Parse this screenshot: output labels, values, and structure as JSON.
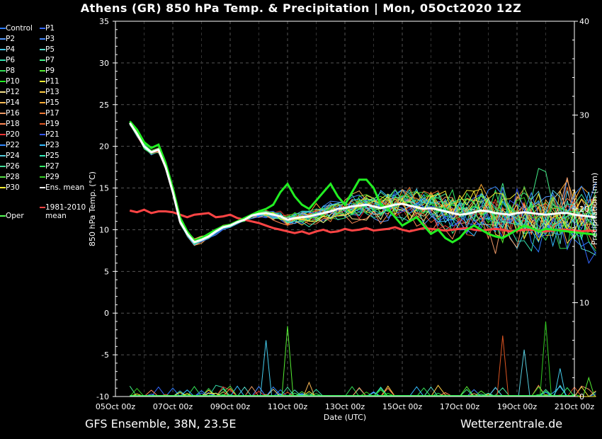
{
  "header": {
    "title": "Athens  (GR)  850 hPa Temp. & Precipitation | Mon, 05Oct2020 12Z"
  },
  "footer": {
    "left": "GFS Ensemble, 38N, 23.5E",
    "right": "Wetterzentrale.de"
  },
  "chart_data": {
    "type": "line",
    "title": "Athens  (GR)  850 hPa Temp. & Precipitation | Mon, 05Oct2020 12Z",
    "xlabel": "Date (UTC)",
    "ylabel": "850 hPa Temp. (°C)",
    "ylabel_right": "Precipitation (mm)",
    "x_ticks": [
      "05Oct 00z",
      "07Oct 00z",
      "09Oct 00z",
      "11Oct 00z",
      "13Oct 00z",
      "15Oct 00z",
      "17Oct 00z",
      "19Oct 00z",
      "21Oct 00z"
    ],
    "y_ticks": [
      "35",
      "30",
      "25",
      "20",
      "15",
      "10",
      "5",
      "0",
      "-5",
      "-10"
    ],
    "y2_ticks": [
      "40",
      "30",
      "20",
      "10",
      "0"
    ],
    "ylim": [
      -10,
      35
    ],
    "y2lim": [
      0,
      40
    ],
    "grid": true,
    "legend_position": "left",
    "time_hours": [
      12,
      18,
      24,
      30,
      36,
      42,
      48,
      54,
      60,
      66,
      72,
      78,
      84,
      90,
      96,
      102,
      108,
      114,
      120,
      126,
      132,
      138,
      144,
      150,
      156,
      162,
      168,
      174,
      180,
      186,
      192,
      198,
      204,
      210,
      216,
      222,
      228,
      234,
      240,
      246,
      252,
      258,
      264,
      270,
      276,
      282,
      288,
      294,
      300,
      306,
      312,
      318,
      324,
      330,
      336,
      342,
      348,
      354,
      360,
      366,
      372,
      378,
      384,
      390,
      396,
      402
    ],
    "ens_mean": [
      22.8,
      21.5,
      20.0,
      19.3,
      19.6,
      17.5,
      14.5,
      11.0,
      9.5,
      8.5,
      8.8,
      9.2,
      9.8,
      10.3,
      10.5,
      10.9,
      11.2,
      11.7,
      11.9,
      12.0,
      11.8,
      11.6,
      11.2,
      11.4,
      11.5,
      11.6,
      11.8,
      12.0,
      12.2,
      12.5,
      12.6,
      12.8,
      12.9,
      13.0,
      12.8,
      12.6,
      12.8,
      13.0,
      13.1,
      12.9,
      12.7,
      12.5,
      12.6,
      12.4,
      12.2,
      12.0,
      11.8,
      11.9,
      12.1,
      12.3,
      12.2,
      12.0,
      11.9,
      11.8,
      12.0,
      12.1,
      12.0,
      11.9,
      11.8,
      11.9,
      12.0,
      12.0,
      11.8,
      11.7,
      11.6,
      11.5
    ],
    "climate_mean": [
      12.3,
      12.1,
      12.4,
      12.0,
      12.2,
      12.2,
      12.1,
      11.8,
      11.5,
      11.8,
      11.9,
      12.0,
      11.5,
      11.6,
      11.8,
      11.4,
      11.2,
      11.0,
      10.8,
      10.5,
      10.2,
      10.0,
      9.8,
      9.6,
      9.8,
      9.5,
      9.8,
      10.0,
      9.7,
      9.8,
      10.1,
      9.9,
      10.0,
      10.2,
      9.9,
      10.0,
      10.1,
      10.3,
      10.0,
      9.8,
      10.0,
      10.2,
      10.1,
      10.0,
      9.9,
      10.0,
      10.1,
      10.2,
      10.0,
      9.9,
      10.0,
      10.1,
      10.0,
      9.8,
      9.9,
      10.0,
      10.0,
      9.9,
      9.8,
      9.9,
      10.0,
      10.0,
      9.9,
      9.8,
      9.9,
      9.8
    ],
    "oper": [
      23.0,
      22.0,
      20.5,
      19.8,
      20.2,
      18.0,
      15.0,
      11.5,
      9.8,
      8.7,
      9.0,
      9.5,
      10.0,
      10.4,
      10.6,
      11.0,
      11.4,
      11.8,
      12.2,
      12.5,
      13.0,
      14.5,
      15.5,
      14.0,
      13.0,
      12.5,
      13.5,
      14.5,
      15.5,
      14.0,
      13.0,
      14.5,
      16.0,
      16.0,
      15.0,
      13.0,
      12.5,
      11.5,
      10.5,
      11.0,
      11.5,
      10.5,
      9.5,
      10.0,
      9.0,
      8.5,
      9.0,
      10.0,
      10.5,
      10.0,
      9.5,
      9.2,
      9.0,
      9.5,
      10.0,
      10.5,
      10.2,
      9.8,
      10.1,
      10.0,
      9.9,
      9.8,
      9.7,
      9.6,
      9.5,
      9.4
    ],
    "precip_spikes_mm": [
      {
        "hour": 126,
        "value": 6.0
      },
      {
        "hour": 144,
        "value": 7.5
      },
      {
        "hour": 162,
        "value": 1.5
      },
      {
        "hour": 324,
        "value": 6.5
      },
      {
        "hour": 342,
        "value": 5.0
      },
      {
        "hour": 360,
        "value": 8.0
      },
      {
        "hour": 372,
        "value": 3.0
      },
      {
        "hour": 396,
        "value": 2.0
      }
    ],
    "legend": [
      {
        "label": "Control",
        "color": "#2b7bff"
      },
      {
        "label": "P1",
        "color": "#3366ff"
      },
      {
        "label": "P2",
        "color": "#5599ff"
      },
      {
        "label": "P3",
        "color": "#4488ff"
      },
      {
        "label": "P4",
        "color": "#44ccee"
      },
      {
        "label": "P5",
        "color": "#55ddcc"
      },
      {
        "label": "P6",
        "color": "#33ddaa"
      },
      {
        "label": "P7",
        "color": "#44ee88"
      },
      {
        "label": "P8",
        "color": "#33dd55"
      },
      {
        "label": "P9",
        "color": "#55ee33"
      },
      {
        "label": "P10",
        "color": "#22ee22"
      },
      {
        "label": "P11",
        "color": "#eeee33"
      },
      {
        "label": "P12",
        "color": "#f5e08a"
      },
      {
        "label": "P13",
        "color": "#ffcc44"
      },
      {
        "label": "P14",
        "color": "#ffbb55"
      },
      {
        "label": "P15",
        "color": "#ffaa33"
      },
      {
        "label": "P16",
        "color": "#ee9966"
      },
      {
        "label": "P17",
        "color": "#ee7733"
      },
      {
        "label": "P18",
        "color": "#ff8855"
      },
      {
        "label": "P19",
        "color": "#dd5522"
      },
      {
        "label": "P20",
        "color": "#ee3333"
      },
      {
        "label": "P21",
        "color": "#3355ee"
      },
      {
        "label": "P22",
        "color": "#3388ff"
      },
      {
        "label": "P23",
        "color": "#33bbff"
      },
      {
        "label": "P24",
        "color": "#55ccdd"
      },
      {
        "label": "P25",
        "color": "#33eebb"
      },
      {
        "label": "P26",
        "color": "#44dd99"
      },
      {
        "label": "P27",
        "color": "#33ee66"
      },
      {
        "label": "P28",
        "color": "#55dd44"
      },
      {
        "label": "P29",
        "color": "#33cc22"
      },
      {
        "label": "P30",
        "color": "#ffee33"
      },
      {
        "label": "Ens. mean",
        "color": "#ffffff"
      },
      {
        "label": "1981-2010\nmean",
        "color": "#ff4444"
      },
      {
        "label": "Oper",
        "color": "#55ff55"
      }
    ]
  }
}
